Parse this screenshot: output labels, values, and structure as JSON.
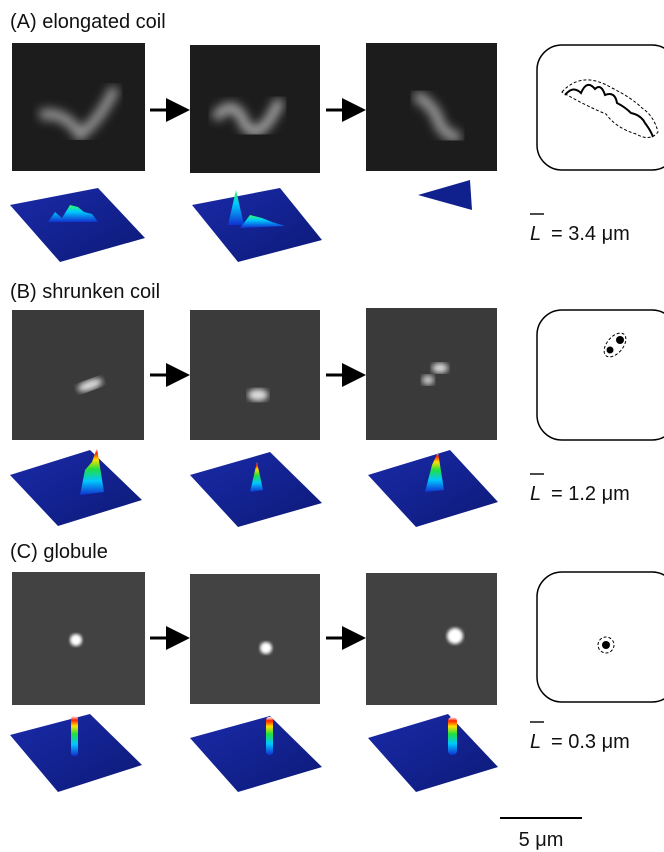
{
  "panels": [
    {
      "label": "(A) elongated coil",
      "symbol": "L",
      "length": "= 3.4 μm"
    },
    {
      "label": "(B) shrunken coil",
      "symbol": "L",
      "length": "= 1.2 μm"
    },
    {
      "label": "(C) globule",
      "symbol": "L",
      "length": "= 0.3 μm"
    }
  ],
  "scale_bar": "5 μm"
}
